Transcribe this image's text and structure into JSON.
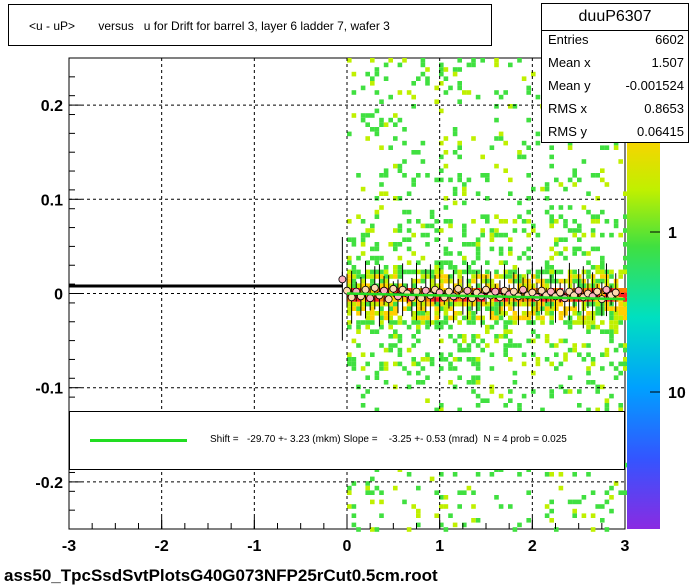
{
  "title": "<u - uP>       versus   u for Drift for barrel 3, layer 6 ladder 7, wafer 3",
  "stats": {
    "name": "duuP6307",
    "rows": [
      {
        "label": "Entries",
        "value": "6602"
      },
      {
        "label": "Mean x",
        "value": "1.507"
      },
      {
        "label": "Mean y",
        "value": "-0.001524"
      },
      {
        "label": "RMS x",
        "value": "0.8653"
      },
      {
        "label": "RMS y",
        "value": "0.06415"
      }
    ]
  },
  "fit_legend": "Shift =   -29.70 +- 3.23 (mkm) Slope =    -3.25 +- 0.53 (mrad)  N = 4 prob = 0.025",
  "footer": "ass50_TpcSsdSvtPlotsG40G073NFP25rCut0.5cm.root",
  "colors": {
    "fit_line": "#22dd22",
    "profile_line": "#000000"
  },
  "chart_data": {
    "type": "heatmap",
    "xlim": [
      -3,
      3
    ],
    "ylim": [
      -0.25,
      0.25
    ],
    "x_ticks": [
      "-3",
      "-2",
      "-1",
      "0",
      "1",
      "2",
      "3"
    ],
    "y_ticks": [
      "-0.2",
      "-0.1",
      "0",
      "0.1",
      "0.2"
    ],
    "z_scale": "log",
    "z_ticks": [
      "1",
      "10"
    ],
    "grid": true,
    "profile_left": {
      "x_start": -3,
      "x_end": -0.05,
      "y": 0.008
    },
    "fit_line": {
      "x_start": 0,
      "x_end": 3,
      "y_start": 0.0,
      "y_end": -0.006
    },
    "profile_points": [
      {
        "x": -0.05,
        "y": 0.015
      },
      {
        "x": 0.0,
        "y": 0.003
      },
      {
        "x": 0.05,
        "y": -0.004
      },
      {
        "x": 0.1,
        "y": 0.002
      },
      {
        "x": 0.15,
        "y": -0.003
      },
      {
        "x": 0.2,
        "y": 0.004
      },
      {
        "x": 0.25,
        "y": -0.005
      },
      {
        "x": 0.3,
        "y": 0.006
      },
      {
        "x": 0.35,
        "y": -0.002
      },
      {
        "x": 0.4,
        "y": 0.003
      },
      {
        "x": 0.45,
        "y": -0.006
      },
      {
        "x": 0.5,
        "y": 0.005
      },
      {
        "x": 0.55,
        "y": -0.003
      },
      {
        "x": 0.6,
        "y": 0.004
      },
      {
        "x": 0.65,
        "y": 0.0
      },
      {
        "x": 0.7,
        "y": -0.004
      },
      {
        "x": 0.75,
        "y": 0.002
      },
      {
        "x": 0.8,
        "y": -0.005
      },
      {
        "x": 0.85,
        "y": 0.003
      },
      {
        "x": 0.9,
        "y": -0.002
      },
      {
        "x": 0.95,
        "y": 0.004
      },
      {
        "x": 1.0,
        "y": 0.001
      },
      {
        "x": 1.05,
        "y": -0.004
      },
      {
        "x": 1.1,
        "y": 0.002
      },
      {
        "x": 1.15,
        "y": -0.003
      },
      {
        "x": 1.2,
        "y": 0.005
      },
      {
        "x": 1.25,
        "y": -0.002
      },
      {
        "x": 1.3,
        "y": 0.003
      },
      {
        "x": 1.35,
        "y": -0.005
      },
      {
        "x": 1.4,
        "y": 0.001
      },
      {
        "x": 1.45,
        "y": -0.003
      },
      {
        "x": 1.5,
        "y": 0.004
      },
      {
        "x": 1.55,
        "y": -0.002
      },
      {
        "x": 1.6,
        "y": 0.002
      },
      {
        "x": 1.65,
        "y": -0.004
      },
      {
        "x": 1.7,
        "y": 0.003
      },
      {
        "x": 1.75,
        "y": -0.001
      },
      {
        "x": 1.8,
        "y": 0.002
      },
      {
        "x": 1.85,
        "y": -0.003
      },
      {
        "x": 1.9,
        "y": 0.004
      },
      {
        "x": 1.95,
        "y": -0.002
      },
      {
        "x": 2.0,
        "y": 0.001
      },
      {
        "x": 2.05,
        "y": -0.004
      },
      {
        "x": 2.1,
        "y": 0.003
      },
      {
        "x": 2.15,
        "y": -0.002
      },
      {
        "x": 2.2,
        "y": 0.002
      },
      {
        "x": 2.25,
        "y": -0.003
      },
      {
        "x": 2.3,
        "y": 0.001
      },
      {
        "x": 2.35,
        "y": -0.005
      },
      {
        "x": 2.4,
        "y": 0.002
      },
      {
        "x": 2.45,
        "y": -0.002
      },
      {
        "x": 2.5,
        "y": 0.003
      },
      {
        "x": 2.55,
        "y": -0.004
      },
      {
        "x": 2.6,
        "y": 0.0
      },
      {
        "x": 2.65,
        "y": -0.003
      },
      {
        "x": 2.7,
        "y": 0.002
      },
      {
        "x": 2.75,
        "y": -0.006
      },
      {
        "x": 2.8,
        "y": 0.004
      },
      {
        "x": 2.85,
        "y": -0.002
      },
      {
        "x": 2.9,
        "y": 0.001
      }
    ]
  }
}
